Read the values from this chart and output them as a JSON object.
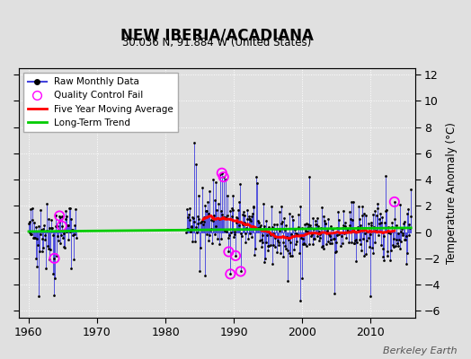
{
  "title": "NEW IBERIA/ACADIANA",
  "subtitle": "30.036 N, 91.884 W (United States)",
  "ylabel": "Temperature Anomaly (°C)",
  "watermark": "Berkeley Earth",
  "ylim": [
    -6.5,
    12.5
  ],
  "xlim": [
    1958.5,
    2016.5
  ],
  "xticks": [
    1960,
    1970,
    1980,
    1990,
    2000,
    2010
  ],
  "yticks": [
    -6,
    -4,
    -2,
    0,
    2,
    4,
    6,
    8,
    10,
    12
  ],
  "bg_color": "#e0e0e0",
  "plot_bg_color": "#e0e0e0",
  "grid_color": "#ffffff",
  "line_color": "#4444dd",
  "dot_color": "black",
  "moving_avg_color": "red",
  "trend_color": "#00cc00",
  "qc_color": "magenta",
  "legend_labels": [
    "Raw Monthly Data",
    "Quality Control Fail",
    "Five Year Moving Average",
    "Long-Term Trend"
  ]
}
